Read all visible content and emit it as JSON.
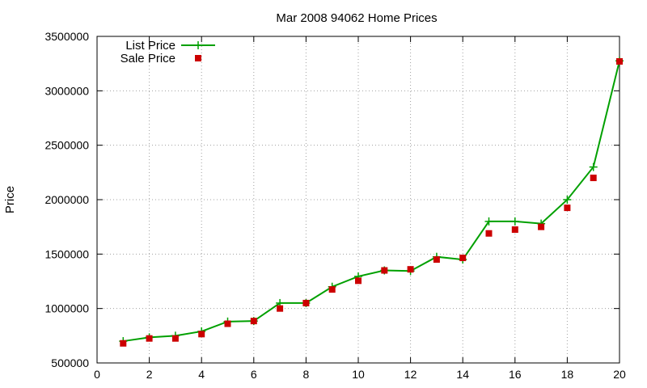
{
  "chart_data": {
    "type": "line",
    "title": "Mar 2008 94062 Home Prices",
    "xlabel": "",
    "ylabel": "Price",
    "xlim": [
      0,
      20
    ],
    "ylim": [
      500000,
      3500000
    ],
    "xticks": [
      0,
      2,
      4,
      6,
      8,
      10,
      12,
      14,
      16,
      18,
      20
    ],
    "yticks": [
      500000,
      1000000,
      1500000,
      2000000,
      2500000,
      3000000,
      3500000
    ],
    "grid": true,
    "legend_position": "top-left",
    "x": [
      1,
      2,
      3,
      4,
      5,
      6,
      7,
      8,
      9,
      10,
      11,
      12,
      13,
      14,
      15,
      16,
      17,
      18,
      19,
      20
    ],
    "series": [
      {
        "name": "List Price",
        "style": "line-with-plus",
        "color": "#00a000",
        "values": [
          700000,
          735000,
          750000,
          790000,
          880000,
          885000,
          1050000,
          1050000,
          1200000,
          1295000,
          1350000,
          1345000,
          1475000,
          1450000,
          1800000,
          1800000,
          1780000,
          2000000,
          2300000,
          3275000
        ]
      },
      {
        "name": "Sale Price",
        "style": "square-markers",
        "color": "#cc0000",
        "values": [
          680000,
          725000,
          725000,
          765000,
          860000,
          885000,
          1000000,
          1050000,
          1175000,
          1255000,
          1350000,
          1360000,
          1450000,
          1465000,
          1690000,
          1725000,
          1750000,
          1925000,
          2200000,
          3270000
        ]
      }
    ]
  }
}
